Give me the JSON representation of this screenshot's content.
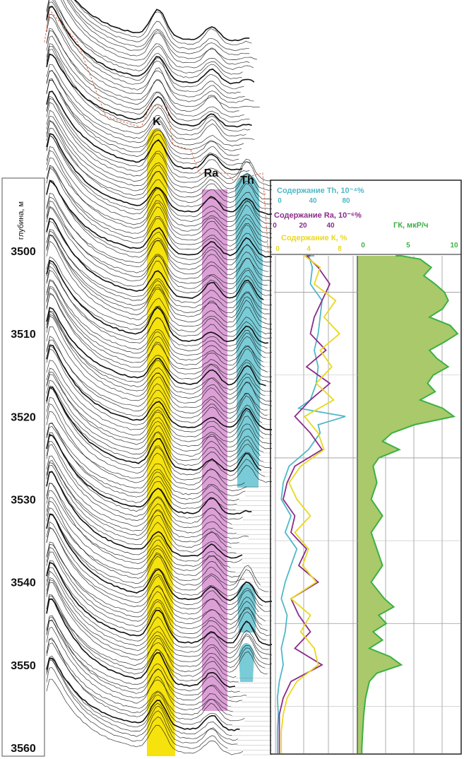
{
  "chart_data": [
    {
      "type": "line",
      "description_of_axes": "gamma-spectra waterfall versus depth",
      "depth_axis": {
        "title": "глубина, м",
        "ticks": [
          3500,
          3510,
          3520,
          3530,
          3540,
          3550,
          3560
        ],
        "range": [
          3497,
          3562
        ]
      },
      "peak_labels": [
        "K",
        "Ra",
        "Th"
      ],
      "colors": {
        "K": "#f5e000",
        "Ra": "#d68fd0",
        "Th": "#62c3d0"
      }
    },
    {
      "type": "line",
      "axes": [
        {
          "title": "Содержание Th, 10⁻⁴%",
          "ticks": [
            "0",
            "40",
            "80"
          ],
          "range": [
            0,
            80
          ],
          "color": "#4fb8c8"
        },
        {
          "title": "Содержание Ra, 10⁻⁶%",
          "ticks": [
            "0",
            "20",
            "40"
          ],
          "range": [
            0,
            40
          ],
          "color": "#8a2c8a"
        },
        {
          "title": "Содержание К, %",
          "ticks": [
            "0",
            "4",
            "8"
          ],
          "range": [
            0,
            8
          ],
          "color": "#e9d81c"
        }
      ],
      "series": [
        {
          "name": "Th",
          "color": "#4fb8c8",
          "depth": [
            3498,
            3500,
            3502,
            3504,
            3506,
            3508,
            3510,
            3512,
            3514,
            3516,
            3518,
            3519,
            3520,
            3521,
            3522,
            3524,
            3526,
            3528,
            3530,
            3532,
            3534,
            3536,
            3538,
            3540,
            3542,
            3544,
            3546,
            3548,
            3550,
            3552,
            3554,
            3556,
            3558,
            3560,
            3562
          ],
          "values": [
            40,
            34,
            38,
            36,
            48,
            46,
            44,
            40,
            44,
            42,
            36,
            24,
            72,
            44,
            46,
            34,
            14,
            8,
            6,
            16,
            10,
            22,
            16,
            10,
            6,
            12,
            10,
            6,
            8,
            4,
            2,
            3,
            2,
            2,
            2
          ]
        },
        {
          "name": "Ra",
          "color": "#8a2c8a",
          "depth": [
            3498,
            3500,
            3502,
            3504,
            3506,
            3508,
            3510,
            3512,
            3514,
            3516,
            3518,
            3520,
            3522,
            3524,
            3526,
            3528,
            3530,
            3532,
            3534,
            3536,
            3538,
            3540,
            3542,
            3544,
            3546,
            3548,
            3550,
            3552,
            3554,
            3556,
            3558,
            3560,
            3562
          ],
          "values": [
            18,
            16,
            22,
            28,
            24,
            20,
            18,
            26,
            16,
            28,
            18,
            10,
            18,
            24,
            10,
            6,
            4,
            10,
            8,
            16,
            12,
            22,
            8,
            12,
            18,
            10,
            24,
            8,
            4,
            2,
            2,
            2,
            2
          ]
        },
        {
          "name": "K",
          "color": "#e9d81c",
          "depth": [
            3498,
            3500,
            3502,
            3504,
            3506,
            3508,
            3510,
            3512,
            3514,
            3516,
            3518,
            3520,
            3522,
            3524,
            3526,
            3528,
            3530,
            3532,
            3534,
            3536,
            3538,
            3540,
            3542,
            3544,
            3546,
            3548,
            3550,
            3552,
            3554,
            3556,
            3558,
            3560,
            3562
          ],
          "values": [
            3.2,
            3.0,
            4.6,
            4.0,
            6.2,
            5.0,
            6.6,
            4.6,
            5.8,
            4.2,
            6.0,
            3.0,
            4.4,
            5.0,
            2.6,
            1.4,
            2.2,
            3.6,
            2.0,
            3.4,
            2.8,
            4.2,
            1.6,
            3.6,
            2.6,
            4.0,
            4.4,
            2.2,
            1.2,
            0.8,
            0.6,
            0.6,
            0.6
          ]
        }
      ]
    },
    {
      "type": "area",
      "axis": {
        "title": "ГК, мкР/ч",
        "ticks": [
          "0",
          "5",
          "10"
        ],
        "range": [
          0,
          10
        ]
      },
      "series": [
        {
          "name": "ГК, мкР/ч",
          "color": "#3cb043",
          "fill": "#a9c96b",
          "depth": [
            3498,
            3500,
            3501,
            3502,
            3503,
            3504,
            3505,
            3506,
            3507,
            3508,
            3509,
            3510,
            3511,
            3512,
            3513,
            3514,
            3515,
            3516,
            3517,
            3518,
            3519,
            3520,
            3521,
            3522,
            3523,
            3524,
            3525,
            3526,
            3528,
            3530,
            3532,
            3534,
            3536,
            3538,
            3540,
            3542,
            3543,
            3544,
            3545,
            3546,
            3547,
            3548,
            3549,
            3550,
            3551,
            3552,
            3554,
            3556,
            3558,
            3560,
            3562
          ],
          "values": [
            4.0,
            4.6,
            6.6,
            7.8,
            7.0,
            8.2,
            9.2,
            9.6,
            9.0,
            7.6,
            9.8,
            10.6,
            9.2,
            7.6,
            8.4,
            9.6,
            8.0,
            7.4,
            8.2,
            6.6,
            9.0,
            10.2,
            6.0,
            3.6,
            2.6,
            4.4,
            2.2,
            1.6,
            2.0,
            1.4,
            2.6,
            1.4,
            2.0,
            2.6,
            1.4,
            2.8,
            3.8,
            2.2,
            3.0,
            1.6,
            2.6,
            1.2,
            3.4,
            4.6,
            2.0,
            1.2,
            0.8,
            0.6,
            0.5,
            0.4,
            0.4
          ]
        }
      ]
    }
  ]
}
